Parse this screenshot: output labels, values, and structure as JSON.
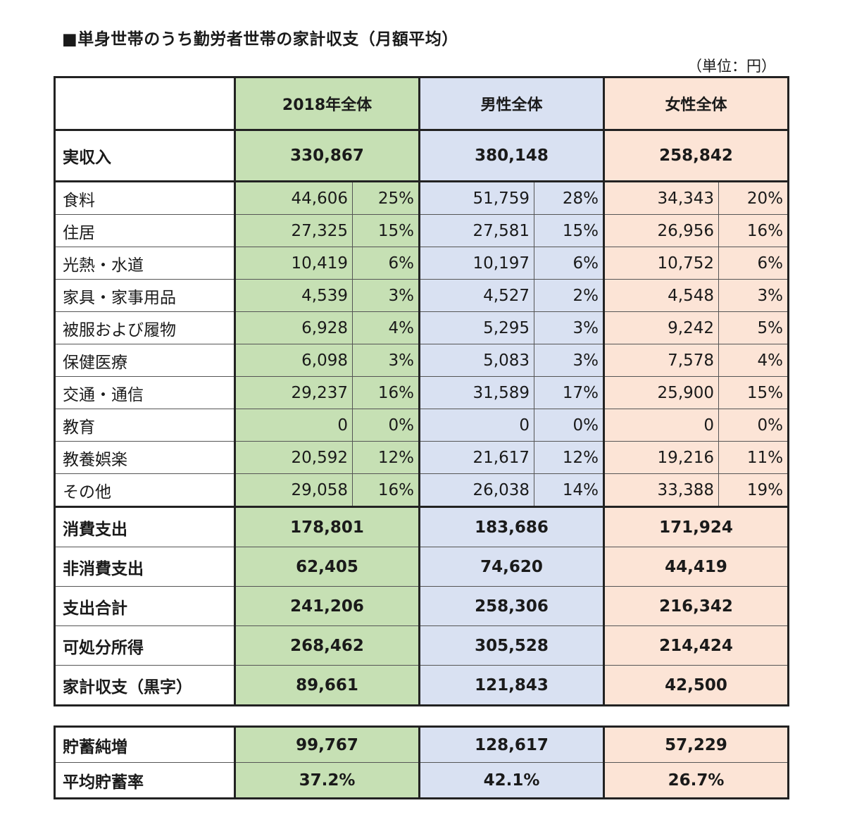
{
  "title": "■単身世帯のうち勤労者世帯の家計収支（月額平均）",
  "unit": "（単位：円）",
  "headers": {
    "all": "2018年全体",
    "male": "男性全体",
    "female": "女性全体"
  },
  "income": {
    "label": "実収入",
    "all": "330,867",
    "male": "380,148",
    "female": "258,842"
  },
  "items": [
    {
      "label": "食料",
      "all": "44,606",
      "all_pct": "25%",
      "male": "51,759",
      "male_pct": "28%",
      "female": "34,343",
      "female_pct": "20%"
    },
    {
      "label": "住居",
      "all": "27,325",
      "all_pct": "15%",
      "male": "27,581",
      "male_pct": "15%",
      "female": "26,956",
      "female_pct": "16%"
    },
    {
      "label": "光熱・水道",
      "all": "10,419",
      "all_pct": "6%",
      "male": "10,197",
      "male_pct": "6%",
      "female": "10,752",
      "female_pct": "6%"
    },
    {
      "label": "家具・家事用品",
      "all": "4,539",
      "all_pct": "3%",
      "male": "4,527",
      "male_pct": "2%",
      "female": "4,548",
      "female_pct": "3%"
    },
    {
      "label": "被服および履物",
      "all": "6,928",
      "all_pct": "4%",
      "male": "5,295",
      "male_pct": "3%",
      "female": "9,242",
      "female_pct": "5%"
    },
    {
      "label": "保健医療",
      "all": "6,098",
      "all_pct": "3%",
      "male": "5,083",
      "male_pct": "3%",
      "female": "7,578",
      "female_pct": "4%"
    },
    {
      "label": "交通・通信",
      "all": "29,237",
      "all_pct": "16%",
      "male": "31,589",
      "male_pct": "17%",
      "female": "25,900",
      "female_pct": "15%"
    },
    {
      "label": "教育",
      "all": "0",
      "all_pct": "0%",
      "male": "0",
      "male_pct": "0%",
      "female": "0",
      "female_pct": "0%"
    },
    {
      "label": "教養娯楽",
      "all": "20,592",
      "all_pct": "12%",
      "male": "21,617",
      "male_pct": "12%",
      "female": "19,216",
      "female_pct": "11%"
    },
    {
      "label": "その他",
      "all": "29,058",
      "all_pct": "16%",
      "male": "26,038",
      "male_pct": "14%",
      "female": "33,388",
      "female_pct": "19%"
    }
  ],
  "totals": [
    {
      "label": "消費支出",
      "all": "178,801",
      "male": "183,686",
      "female": "171,924"
    },
    {
      "label": "非消費支出",
      "all": "62,405",
      "male": "74,620",
      "female": "44,419"
    },
    {
      "label": "支出合計",
      "all": "241,206",
      "male": "258,306",
      "female": "216,342"
    },
    {
      "label": "可処分所得",
      "all": "268,462",
      "male": "305,528",
      "female": "214,424"
    },
    {
      "label": "家計収支（黒字）",
      "all": "89,661",
      "male": "121,843",
      "female": "42,500"
    }
  ],
  "savings": [
    {
      "label": "貯蓄純増",
      "all": "99,767",
      "male": "128,617",
      "female": "57,229"
    },
    {
      "label": "平均貯蓄率",
      "all": "37.2%",
      "male": "42.1%",
      "female": "26.7%"
    }
  ],
  "colors": {
    "all_bg": "#c6e0b4",
    "male_bg": "#d9e1f2",
    "female_bg": "#fce4d6"
  }
}
